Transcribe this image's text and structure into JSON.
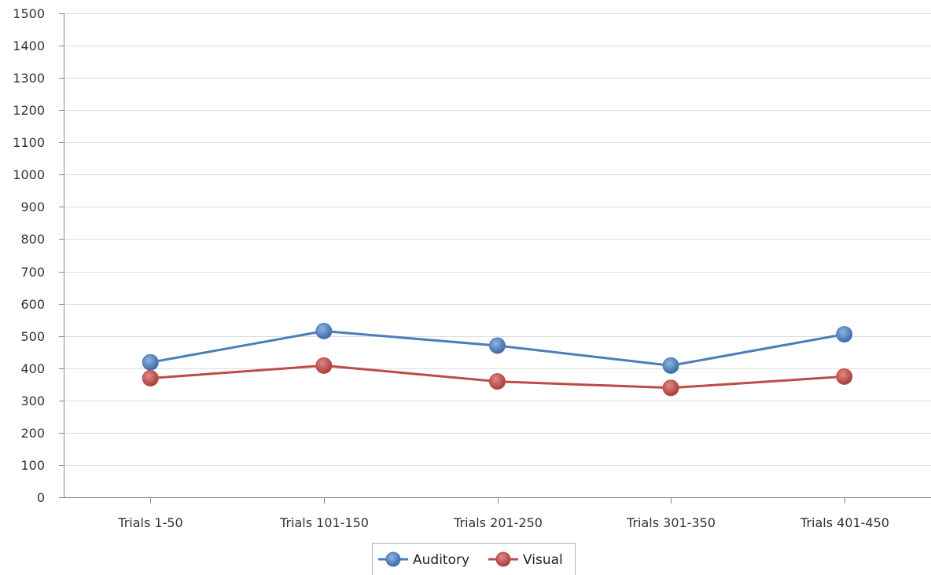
{
  "colors": {
    "auditory": "#4a7ebb",
    "visual": "#be4b48",
    "grid": "#dddddd",
    "axis": "#888888",
    "legend_border": "#b0b0b0"
  },
  "chart_data": {
    "type": "line",
    "title": "",
    "xlabel": "",
    "ylabel": "",
    "categories": [
      "Trials 1-50",
      "Trials 101-150",
      "Trials 201-250",
      "Trials 301-350",
      "Trials 401-450"
    ],
    "ylim": [
      0,
      1500
    ],
    "yticks": [
      0,
      100,
      200,
      300,
      400,
      500,
      600,
      700,
      800,
      900,
      1000,
      1100,
      1200,
      1300,
      1400,
      1500
    ],
    "grid": true,
    "legend_position": "bottom-center",
    "series": [
      {
        "name": "Auditory",
        "values": [
          418,
          515,
          470,
          408,
          505
        ],
        "color": "#4a7ebb"
      },
      {
        "name": "Visual",
        "values": [
          369,
          408,
          359,
          339,
          374
        ],
        "color": "#be4b48"
      }
    ]
  }
}
